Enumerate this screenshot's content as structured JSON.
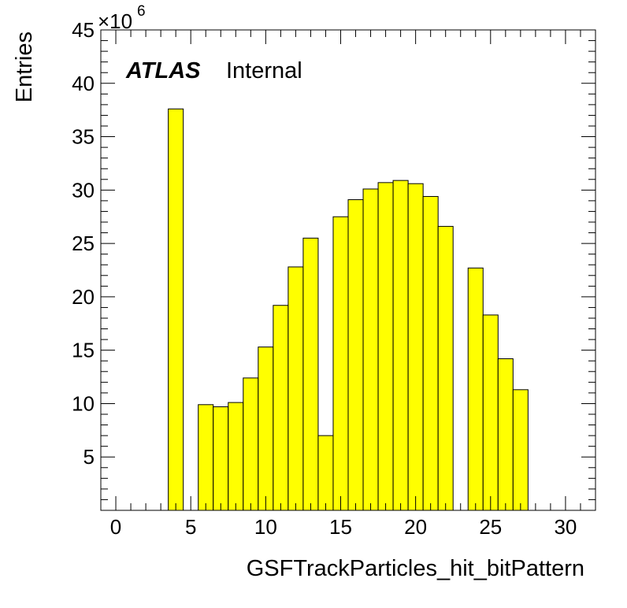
{
  "chart_data": {
    "type": "bar",
    "style": "histogram",
    "fill_color": "#ffff00",
    "edge_color": "#000000",
    "xlabel": "GSFTrackParticles_hit_bitPattern",
    "ylabel": "Entries",
    "y_multiplier_label": "×10",
    "y_multiplier_exponent": "6",
    "annotation": {
      "experiment": "ATLAS",
      "status": "Internal"
    },
    "xlim": [
      -1,
      32
    ],
    "ylim": [
      0,
      45
    ],
    "bin_width": 1,
    "x_ticks": [
      "0",
      "5",
      "10",
      "15",
      "20",
      "25",
      "30"
    ],
    "y_ticks": [
      "5",
      "10",
      "15",
      "20",
      "25",
      "30",
      "35",
      "40",
      "45"
    ],
    "bins": [
      {
        "x": 4,
        "value": 37.6
      },
      {
        "x": 6,
        "value": 9.9
      },
      {
        "x": 7,
        "value": 9.7
      },
      {
        "x": 8,
        "value": 10.1
      },
      {
        "x": 9,
        "value": 12.4
      },
      {
        "x": 10,
        "value": 15.3
      },
      {
        "x": 11,
        "value": 19.2
      },
      {
        "x": 12,
        "value": 22.8
      },
      {
        "x": 13,
        "value": 25.5
      },
      {
        "x": 14,
        "value": 7.0
      },
      {
        "x": 15,
        "value": 27.5
      },
      {
        "x": 16,
        "value": 29.1
      },
      {
        "x": 17,
        "value": 30.1
      },
      {
        "x": 18,
        "value": 30.7
      },
      {
        "x": 19,
        "value": 30.9
      },
      {
        "x": 20,
        "value": 30.6
      },
      {
        "x": 21,
        "value": 29.4
      },
      {
        "x": 22,
        "value": 26.6
      },
      {
        "x": 24,
        "value": 22.7
      },
      {
        "x": 25,
        "value": 18.3
      },
      {
        "x": 26,
        "value": 14.2
      },
      {
        "x": 27,
        "value": 11.3
      }
    ]
  }
}
